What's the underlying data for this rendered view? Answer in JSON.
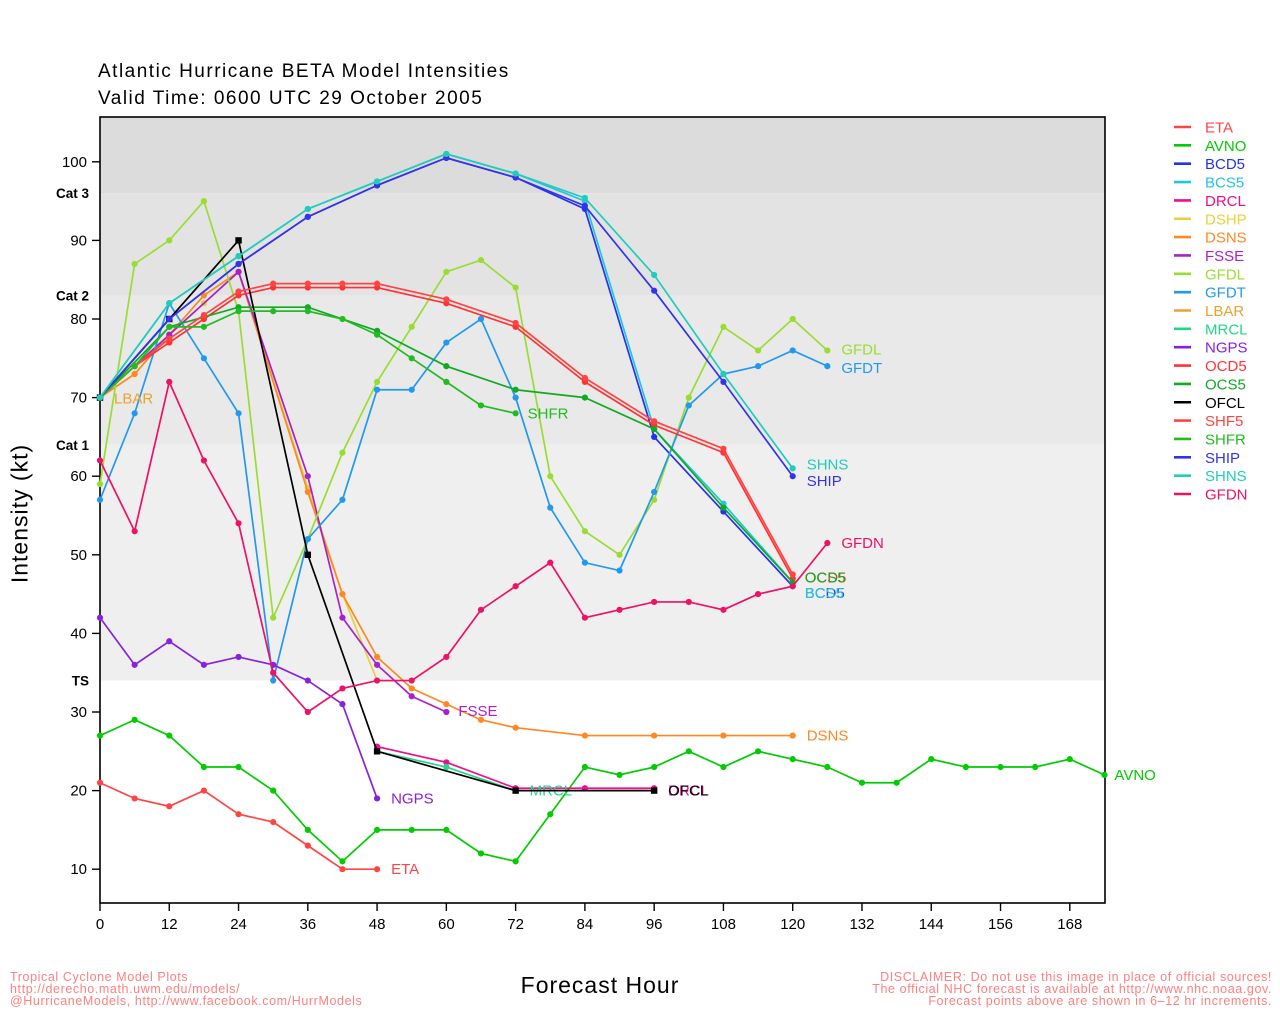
{
  "page": {
    "title_line1": "Atlantic Hurricane BETA Model Intensities",
    "title_line2": "Valid Time: 0600 UTC 29 October 2005",
    "x_axis_label": "Forecast Hour",
    "y_axis_label": "Intensity (kt)",
    "footer_color": "#ff8080",
    "footer_left": [
      "Tropical Cyclone Model Plots",
      "http://derecho.math.uwm.edu/models/",
      "@HurricaneModels, http://www.facebook.com/HurrModels"
    ],
    "footer_right": [
      "DISCLAIMER: Do not use this image in place of official sources!",
      "The official NHC forecast is available at http://www.nhc.noaa.gov.",
      "Forecast points above are shown in 6–12 hr increments."
    ]
  },
  "chart_data": {
    "type": "line",
    "title": "Atlantic Hurricane BETA Model Intensities",
    "subtitle": "Valid Time: 0600 UTC 29 October 2005",
    "xlabel": "Forecast Hour",
    "ylabel": "Intensity (kt)",
    "x_range": [
      0,
      174.1
    ],
    "y_range": [
      5.7,
      105.7
    ],
    "x_ticks": [
      0,
      12,
      24,
      36,
      48,
      60,
      72,
      84,
      96,
      108,
      120,
      132,
      144,
      156,
      168
    ],
    "y_ticks": [
      10,
      20,
      30,
      40,
      50,
      60,
      70,
      80,
      90,
      100
    ],
    "grid": false,
    "legend_position": "right-outside",
    "bands": [
      {
        "from": 96,
        "to": 105.7,
        "color": "#dcdcdc"
      },
      {
        "from": 83,
        "to": 96,
        "color": "#e3e3e3"
      },
      {
        "from": 64,
        "to": 83,
        "color": "#e9e9e9"
      },
      {
        "from": 34,
        "to": 64,
        "color": "#efefef"
      },
      {
        "from": 5.7,
        "to": 34,
        "color": "#ffffff"
      }
    ],
    "category_labels": [
      {
        "label": "Cat 3",
        "kt": 96
      },
      {
        "label": "Cat 2",
        "kt": 83
      },
      {
        "label": "Cat 1",
        "kt": 64
      },
      {
        "label": "TS",
        "kt": 34
      }
    ],
    "series": [
      {
        "name": "ETA",
        "color": "#ff4444",
        "marker": "circle",
        "x": [
          0,
          6,
          12,
          18,
          24,
          30,
          36,
          42,
          48
        ],
        "y": [
          21,
          19,
          18,
          20,
          17,
          16,
          13,
          10,
          10
        ],
        "label": {
          "hr": 48,
          "kt": 10,
          "dx": 14,
          "dy": 0
        }
      },
      {
        "name": "AVNO",
        "color": "#00cc00",
        "marker": "circle",
        "x": [
          0,
          6,
          12,
          18,
          24,
          30,
          36,
          42,
          48,
          54,
          60,
          66,
          72,
          78,
          84,
          90,
          96,
          102,
          108,
          114,
          120,
          126,
          132,
          138,
          144,
          150,
          156,
          162,
          168,
          174
        ],
        "y": [
          27,
          29,
          27,
          23,
          23,
          20,
          15,
          11,
          15,
          15,
          15,
          12,
          11,
          17,
          23,
          22,
          23,
          25,
          23,
          25,
          24,
          23,
          21,
          21,
          24,
          23,
          23,
          23,
          24,
          22
        ],
        "label": {
          "hr": 174,
          "kt": 22,
          "dx": 10,
          "dy": 0
        }
      },
      {
        "name": "BCD5",
        "color": "#2233ee",
        "marker": "circle",
        "x": [
          0,
          12,
          24,
          36,
          48,
          60,
          72,
          84,
          96,
          108,
          120
        ],
        "y": [
          70,
          80,
          87,
          93,
          97,
          100.5,
          98,
          94,
          65,
          55.5,
          46
        ],
        "label": {
          "hr": 120,
          "kt": 46,
          "dx": 12,
          "dy": 7
        }
      },
      {
        "name": "BCS5",
        "color": "#22c5e0",
        "marker": "circle",
        "x": [
          0,
          12,
          24,
          36,
          48,
          60,
          72,
          84,
          96,
          108,
          120
        ],
        "y": [
          70,
          82,
          88,
          94,
          97.5,
          101,
          98.5,
          95,
          66,
          56.5,
          46.5
        ],
        "label": {
          "hr": 120,
          "kt": 46,
          "dx": 12,
          "dy": 7
        }
      },
      {
        "name": "DRCL",
        "color": "#ee0e8e",
        "marker": "circle",
        "x": [
          48,
          60,
          72,
          84,
          96
        ],
        "y": [
          25.6,
          23.6,
          20.3,
          20.3,
          20.3
        ],
        "label": {
          "hr": 96,
          "kt": 20,
          "dx": 14,
          "dy": 0
        }
      },
      {
        "name": "DSHP",
        "color": "#e8d23c",
        "marker": "circle",
        "x": [
          0,
          6,
          12,
          18,
          24,
          36,
          42,
          48
        ],
        "y": [
          70,
          73,
          78,
          82,
          86,
          58.5,
          45,
          34
        ]
      },
      {
        "name": "DSNS",
        "color": "#ff8822",
        "marker": "circle",
        "x": [
          0,
          6,
          12,
          18,
          24,
          36,
          42,
          48,
          54,
          60,
          66,
          72,
          84,
          96,
          108,
          120
        ],
        "y": [
          70,
          73,
          78,
          83,
          86,
          58,
          45,
          37,
          33,
          31,
          29,
          28,
          27,
          27,
          27,
          27
        ],
        "label": {
          "hr": 120,
          "kt": 27,
          "dx": 14,
          "dy": 0
        }
      },
      {
        "name": "FSSE",
        "color": "#a822cc",
        "marker": "circle",
        "x": [
          0,
          12,
          24,
          36,
          42,
          48,
          54,
          60
        ],
        "y": [
          70,
          78,
          86,
          60,
          42,
          36,
          32,
          30
        ],
        "label": {
          "hr": 60,
          "kt": 30,
          "dx": 12,
          "dy": -1
        }
      },
      {
        "name": "GFDL",
        "color": "#99dd33",
        "marker": "circle",
        "x": [
          0,
          6,
          12,
          18,
          24,
          30,
          36,
          42,
          48,
          54,
          60,
          66,
          72,
          78,
          84,
          90,
          96,
          102,
          108,
          114,
          120,
          126
        ],
        "y": [
          59,
          87,
          90,
          95,
          81,
          42,
          52,
          63,
          72,
          79,
          86,
          87.5,
          84,
          60,
          53,
          50,
          57,
          70,
          79,
          76,
          80,
          76
        ],
        "label": {
          "hr": 126,
          "kt": 76,
          "dx": 14,
          "dy": -1
        }
      },
      {
        "name": "GFDT",
        "color": "#2299ee",
        "marker": "circle",
        "x": [
          0,
          6,
          12,
          18,
          24,
          30,
          36,
          42,
          48,
          54,
          60,
          66,
          72,
          78,
          84,
          90,
          96,
          102,
          108,
          114,
          120,
          126
        ],
        "y": [
          57,
          68,
          82,
          75,
          68,
          34,
          52,
          57,
          71,
          71,
          77,
          80,
          70,
          56,
          49,
          48,
          58,
          69,
          73,
          74,
          76,
          74
        ],
        "label": {
          "hr": 126,
          "kt": 74,
          "dx": 14,
          "dy": 2
        }
      },
      {
        "name": "LBAR",
        "color": "#eaa42e",
        "marker": "circle",
        "x": [
          0
        ],
        "y": [
          70
        ],
        "label": {
          "hr": 0,
          "kt": 70,
          "dx": 14,
          "dy": 1
        }
      },
      {
        "name": "MRCL",
        "color": "#22d украин888",
        "marker": "circle",
        "x": [
          48,
          60,
          72
        ],
        "y": [
          25,
          23,
          20
        ],
        "label": {
          "hr": 72,
          "kt": 20,
          "dx": 14,
          "dy": 0
        }
      },
      {
        "name": "NGPS",
        "color": "#8822dd",
        "marker": "circle",
        "x": [
          0,
          6,
          12,
          18,
          24,
          30,
          36,
          42,
          48
        ],
        "y": [
          42,
          36,
          39,
          36,
          37,
          36,
          34,
          31,
          19
        ],
        "label": {
          "hr": 48,
          "kt": 19,
          "dx": 14,
          "dy": 0
        }
      },
      {
        "name": "OCD5",
        "color": "#ff3333",
        "marker": "circle",
        "x": [
          0,
          6,
          12,
          18,
          24,
          30,
          36,
          42,
          48,
          60,
          72,
          84,
          96,
          108,
          120
        ],
        "y": [
          70,
          74,
          77,
          80,
          83,
          84,
          84,
          84,
          84,
          82,
          79,
          72,
          66.5,
          63,
          47
        ],
        "label": {
          "hr": 120,
          "kt": 47,
          "dx": 12,
          "dy": -1
        }
      },
      {
        "name": "OCS5",
        "color": "#11aa22",
        "marker": "circle",
        "x": [
          0,
          12,
          24,
          36,
          48,
          60,
          72,
          84,
          96,
          108,
          120
        ],
        "y": [
          70,
          79,
          81.5,
          81.5,
          78.5,
          74,
          71,
          70,
          66,
          56,
          46.5
        ],
        "label": {
          "hr": 120,
          "kt": 47,
          "dx": 12,
          "dy": -1
        }
      },
      {
        "name": "OFCL",
        "color": "#000000",
        "marker": "square",
        "x": [
          0,
          12,
          24,
          36,
          48,
          72,
          96
        ],
        "y": [
          70,
          80,
          90,
          50,
          25,
          20,
          20
        ],
        "label": {
          "hr": 96,
          "kt": 20,
          "dx": 14,
          "dy": 0
        }
      },
      {
        "name": "SHF5",
        "color": "#ff4444",
        "marker": "circle",
        "x": [
          0,
          6,
          12,
          18,
          24,
          30,
          36,
          42,
          48,
          60,
          72,
          84,
          96,
          108,
          120
        ],
        "y": [
          70,
          74,
          77.5,
          80.5,
          83.5,
          84.5,
          84.5,
          84.5,
          84.5,
          82.5,
          79.5,
          72.5,
          67,
          63.5,
          47.5
        ]
      },
      {
        "name": "SHFR",
        "color": "#22bb22",
        "marker": "circle",
        "x": [
          0,
          6,
          12,
          18,
          24,
          30,
          36,
          42,
          48,
          54,
          60,
          66,
          72
        ],
        "y": [
          70,
          74,
          79,
          79,
          81,
          81,
          81,
          80,
          78,
          75,
          72,
          69,
          68
        ],
        "label": {
          "hr": 72,
          "kt": 68,
          "dx": 12,
          "dy": 0
        }
      },
      {
        "name": "SHIP",
        "color": "#3333ee",
        "marker": "circle",
        "x": [
          0,
          12,
          24,
          36,
          48,
          60,
          72,
          84,
          96,
          108,
          120
        ],
        "y": [
          70,
          80,
          87,
          93,
          97,
          100.5,
          98,
          94.4,
          83.6,
          72,
          60
        ],
        "label": {
          "hr": 120,
          "kt": 60,
          "dx": 14,
          "dy": 5
        }
      },
      {
        "name": "SHNS",
        "color": "#22ccbb",
        "marker": "circle",
        "x": [
          0,
          12,
          24,
          36,
          48,
          60,
          72,
          84,
          96,
          108,
          120
        ],
        "y": [
          70,
          82,
          88,
          94,
          97.5,
          101,
          98.5,
          95.4,
          85.6,
          73,
          61
        ],
        "label": {
          "hr": 120,
          "kt": 61,
          "dx": 14,
          "dy": -4
        }
      },
      {
        "name": "GFDN",
        "color": "#ee1166",
        "marker": "circle",
        "x": [
          0,
          6,
          12,
          18,
          24,
          30,
          36,
          42,
          48,
          54,
          60,
          66,
          72,
          78,
          84,
          90,
          96,
          102,
          108,
          114,
          120,
          126
        ],
        "y": [
          62,
          53,
          72,
          62,
          54,
          35,
          30,
          33,
          34,
          34,
          37,
          43,
          46,
          49,
          42,
          43,
          44,
          44,
          43,
          45,
          46,
          51.5
        ],
        "label": {
          "hr": 126,
          "kt": 51.5,
          "dx": 14,
          "dy": 0
        }
      }
    ]
  }
}
